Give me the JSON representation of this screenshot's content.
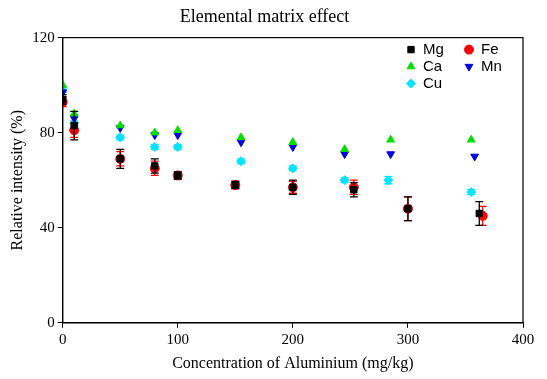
{
  "chart_data": {
    "type": "scatter",
    "title": "Elemental matrix effect",
    "x_label": "Concentration of Aluminium (mg/kg)",
    "y_label": "Relative intensity (%)",
    "xlim": [
      0,
      400
    ],
    "xticks": [
      0,
      100,
      200,
      300,
      400
    ],
    "ylim": [
      0,
      120
    ],
    "yticks": [
      0,
      40,
      80,
      120
    ],
    "grid": false,
    "legend": "upper right",
    "series": [
      {
        "name": "Mg",
        "color": "#000000",
        "marker": "square",
        "x": [
          0,
          10,
          50,
          80,
          100,
          150,
          200,
          253,
          300,
          362
        ],
        "values": [
          94,
          83,
          69,
          66,
          62,
          58,
          57,
          56,
          48,
          46
        ],
        "errors": [
          2,
          6,
          4,
          3,
          1.5,
          1.5,
          3,
          3,
          5,
          5
        ]
      },
      {
        "name": "Fe",
        "color": "#ff0000",
        "marker": "circle",
        "x": [
          0,
          10,
          50,
          80,
          100,
          150,
          200,
          253,
          300,
          365
        ],
        "values": [
          93,
          81,
          69,
          65,
          62,
          58,
          57,
          57,
          48,
          45
        ],
        "errors": [
          2,
          3,
          3,
          3,
          1.5,
          1.5,
          2.5,
          3,
          5,
          4
        ]
      },
      {
        "name": "Ca",
        "color": "#00e000",
        "marker": "triangle_up",
        "x": [
          0,
          10,
          50,
          80,
          100,
          155,
          200,
          245,
          285,
          355
        ],
        "values": [
          100,
          88,
          83,
          80,
          81,
          78,
          76,
          73,
          77,
          77
        ]
      },
      {
        "name": "Mn",
        "color": "#0000e0",
        "marker": "triangle_down",
        "x": [
          0,
          10,
          50,
          80,
          100,
          155,
          200,
          245,
          285,
          358
        ],
        "values": [
          97,
          86,
          82,
          79,
          79,
          76,
          74,
          71,
          71,
          70
        ]
      },
      {
        "name": "Cu",
        "color": "#00e5ff",
        "marker": "diamond",
        "x": [
          0,
          10,
          50,
          80,
          100,
          155,
          200,
          245,
          283,
          355
        ],
        "values": [
          98,
          84,
          78,
          74,
          74,
          68,
          65,
          60,
          60,
          55
        ],
        "errors": [
          1,
          1,
          1,
          1,
          1,
          1,
          1,
          1,
          1.5,
          1
        ]
      }
    ]
  }
}
